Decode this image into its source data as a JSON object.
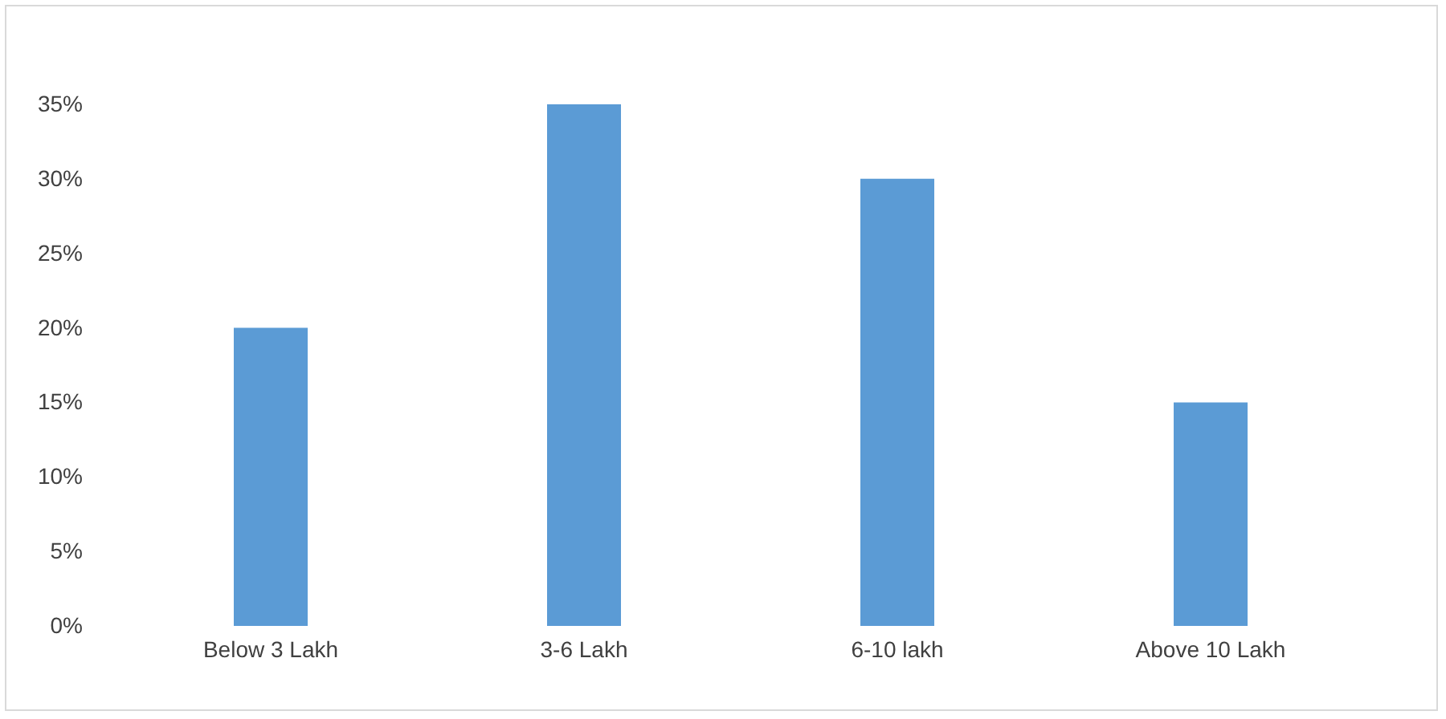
{
  "chart_data": {
    "type": "bar",
    "categories": [
      "Below 3 Lakh",
      "3-6 Lakh",
      "6-10 lakh",
      "Above 10 Lakh"
    ],
    "values": [
      20,
      35,
      30,
      15
    ],
    "color": "#5b9bd5",
    "ylim": [
      0,
      35
    ],
    "yticks": [
      {
        "value": 0,
        "label": "0%"
      },
      {
        "value": 5,
        "label": "5%"
      },
      {
        "value": 10,
        "label": "10%"
      },
      {
        "value": 15,
        "label": "15%"
      },
      {
        "value": 20,
        "label": "20%"
      },
      {
        "value": 25,
        "label": "25%"
      },
      {
        "value": 30,
        "label": "30%"
      },
      {
        "value": 35,
        "label": "35%"
      }
    ],
    "grid": false
  }
}
